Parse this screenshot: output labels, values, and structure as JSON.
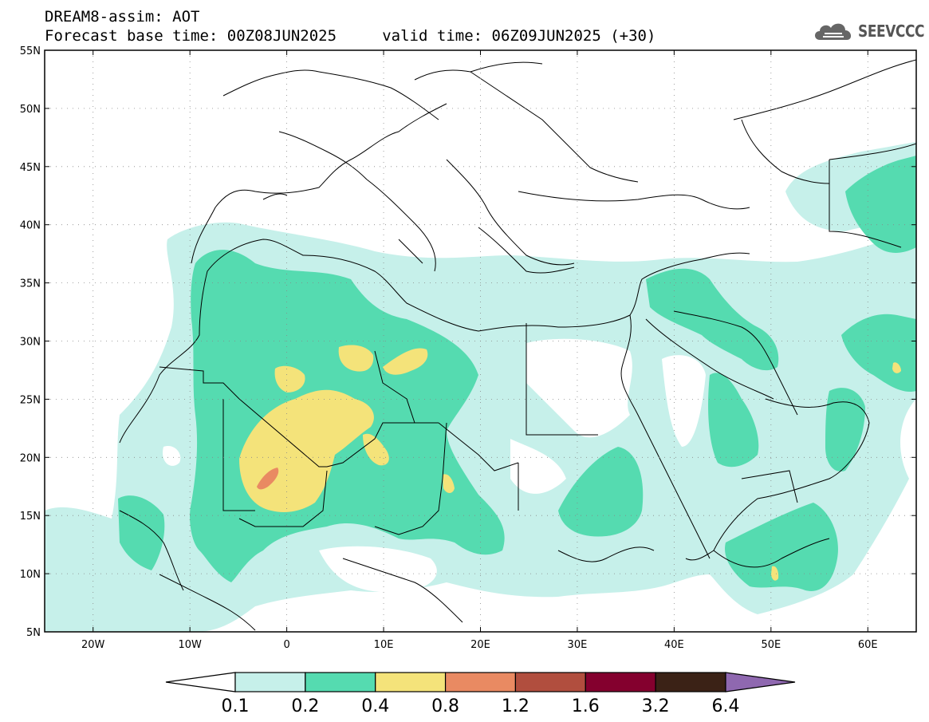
{
  "header": {
    "line1": "DREAM8-assim: AOT",
    "line2": "Forecast base time: 00Z08JUN2025     valid time: 06Z09JUN2025 (+30)"
  },
  "logo": {
    "text": "SEEVCCC",
    "icon": "cloud-icon"
  },
  "map": {
    "lon_range": [
      -25,
      65
    ],
    "lat_range": [
      5,
      55
    ],
    "lat_labels": [
      "55N",
      "50N",
      "45N",
      "40N",
      "35N",
      "30N",
      "25N",
      "20N",
      "15N",
      "10N",
      "5N"
    ],
    "lat_values": [
      55,
      50,
      45,
      40,
      35,
      30,
      25,
      20,
      15,
      10,
      5
    ],
    "lon_labels": [
      "20W",
      "10W",
      "0",
      "10E",
      "20E",
      "30E",
      "40E",
      "50E",
      "60E"
    ],
    "lon_values": [
      -20,
      -10,
      0,
      10,
      20,
      30,
      40,
      50,
      60
    ]
  },
  "colorbar": {
    "labels": [
      "0.1",
      "0.2",
      "0.4",
      "0.8",
      "1.2",
      "1.6",
      "3.2",
      "6.4"
    ],
    "colors": [
      "#ffffff",
      "#c6f0ea",
      "#55dbb0",
      "#f4e37a",
      "#e98a62",
      "#b14e3e",
      "#84002e",
      "#3b2216",
      "#8f68b0"
    ]
  },
  "colors": {
    "level_0_1": "#c6f0ea",
    "level_0_2": "#55dbb0",
    "level_0_4": "#f4e37a",
    "level_0_8": "#e98a62",
    "border": "#000000"
  }
}
